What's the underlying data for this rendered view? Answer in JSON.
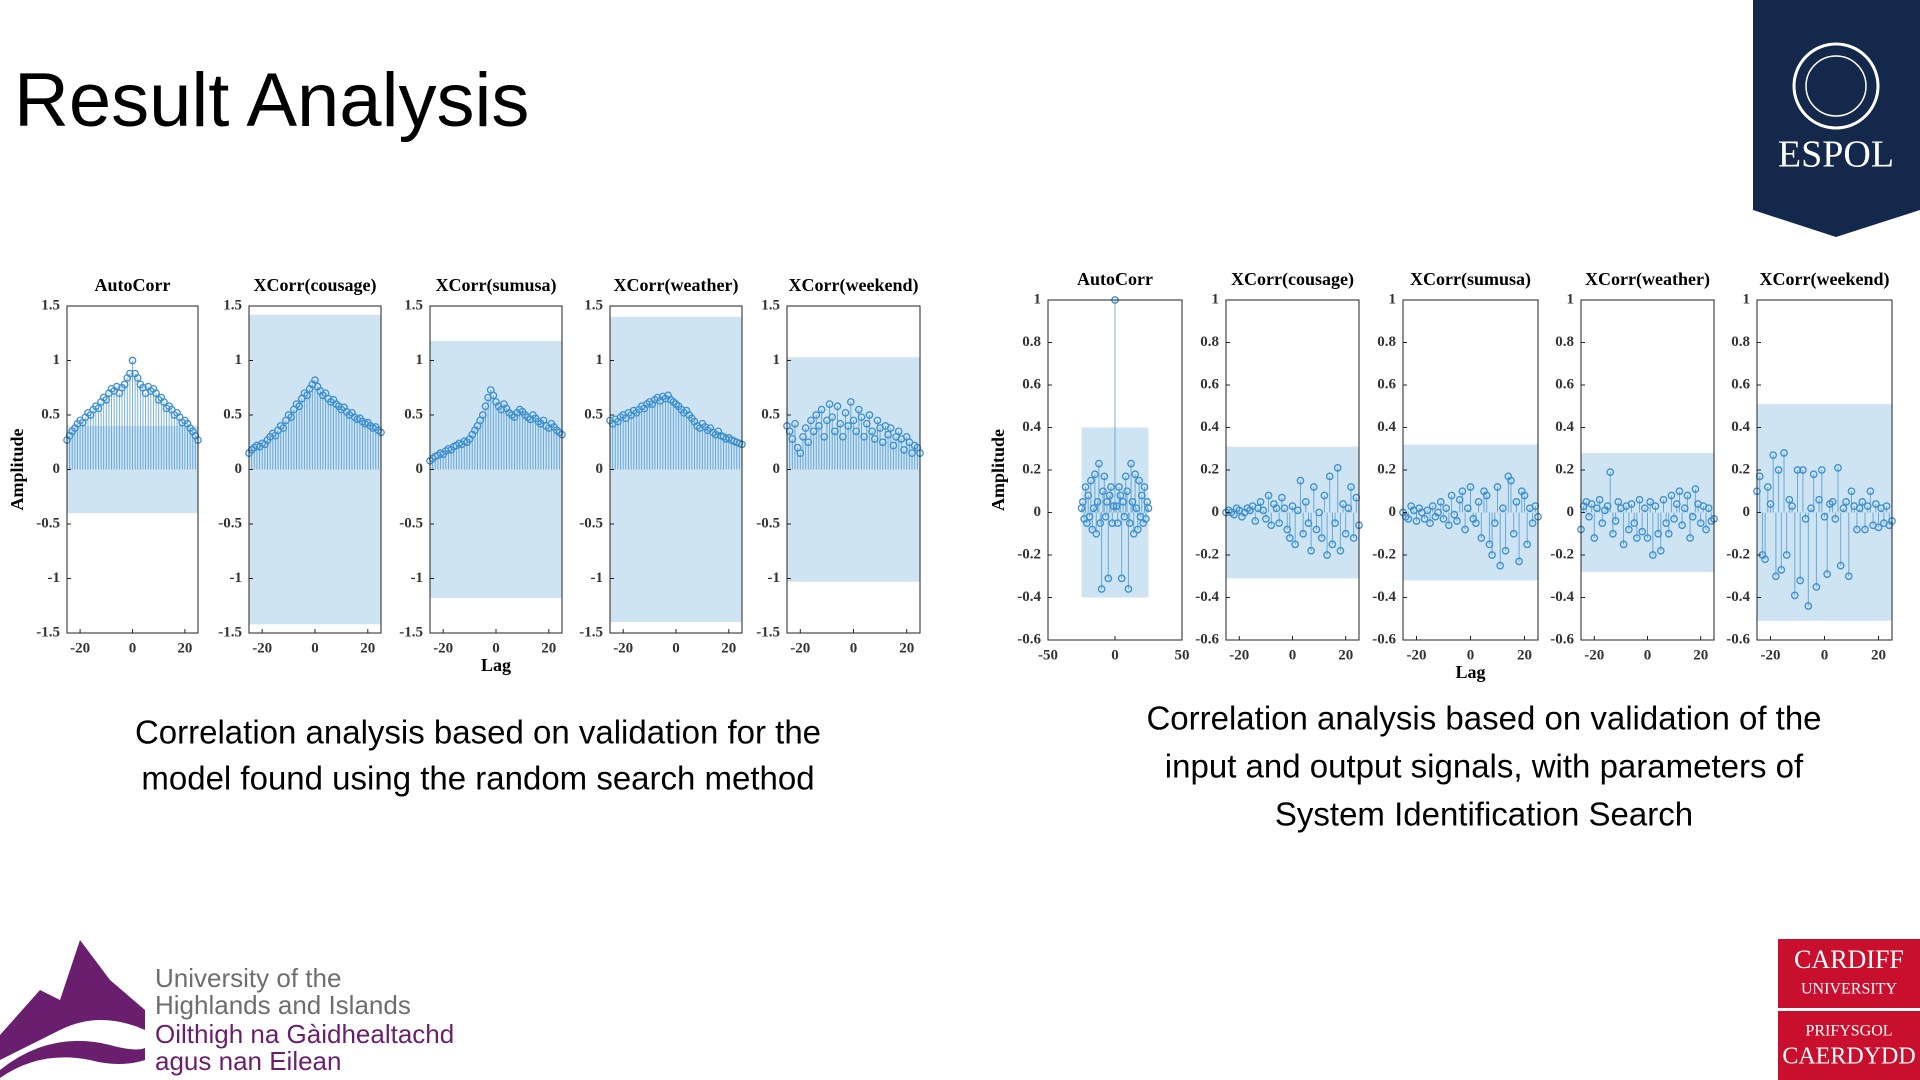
{
  "title": "Result Analysis",
  "captions": [
    [
      "Correlation analysis based on validation for the",
      "model found using the random search method"
    ],
    [
      "Correlation analysis based on validation of the",
      "input and output signals, with parameters of",
      "System Identification Search"
    ]
  ],
  "logos": {
    "espol": "ESPOL",
    "uhi": [
      "University of the",
      "Highlands and Islands",
      "Oilthigh na Gàidhealtachd",
      "agus nan Eilean"
    ],
    "cardiff": [
      "CARDIFF",
      "UNIVERSITY",
      "PRIFYSGOL",
      "CAERDYDD"
    ]
  },
  "chart_data": [
    {
      "type": "stem",
      "title": "AutoCorr",
      "ylabel": "Amplitude",
      "color": "#3d8fd1",
      "band_color": "#c5dff0",
      "xlim": [
        -25,
        25
      ],
      "xticks": [
        -20,
        0,
        20
      ],
      "ylim": [
        -1.5,
        1.5
      ],
      "yticks": [
        -1.5,
        -1,
        -0.5,
        0,
        0.5,
        1,
        1.5
      ],
      "confidence_band": [
        -0.4,
        0.4
      ],
      "x": [
        -25,
        -24,
        -23,
        -22,
        -21,
        -20,
        -19,
        -18,
        -17,
        -16,
        -15,
        -14,
        -13,
        -12,
        -11,
        -10,
        -9,
        -8,
        -7,
        -6,
        -5,
        -4,
        -3,
        -2,
        -1,
        0,
        1,
        2,
        3,
        4,
        5,
        6,
        7,
        8,
        9,
        10,
        11,
        12,
        13,
        14,
        15,
        16,
        17,
        18,
        19,
        20,
        21,
        22,
        23,
        24,
        25
      ],
      "values": [
        0.27,
        0.31,
        0.35,
        0.38,
        0.42,
        0.45,
        0.43,
        0.48,
        0.52,
        0.5,
        0.55,
        0.58,
        0.56,
        0.62,
        0.66,
        0.64,
        0.7,
        0.74,
        0.72,
        0.76,
        0.7,
        0.75,
        0.78,
        0.84,
        0.88,
        1.0,
        0.88,
        0.84,
        0.78,
        0.75,
        0.7,
        0.76,
        0.72,
        0.74,
        0.7,
        0.64,
        0.66,
        0.62,
        0.56,
        0.58,
        0.55,
        0.5,
        0.52,
        0.48,
        0.43,
        0.45,
        0.42,
        0.38,
        0.35,
        0.31,
        0.27
      ]
    },
    {
      "type": "stem",
      "title": "XCorr(cousage)",
      "color": "#3d8fd1",
      "band_color": "#c5dff0",
      "xlim": [
        -25,
        25
      ],
      "xticks": [
        -20,
        0,
        20
      ],
      "ylim": [
        -1.5,
        1.5
      ],
      "yticks": [
        -1.5,
        -1,
        -0.5,
        0,
        0.5,
        1,
        1.5
      ],
      "confidence_band": [
        -1.42,
        1.42
      ],
      "x": [
        -25,
        -24,
        -23,
        -22,
        -21,
        -20,
        -19,
        -18,
        -17,
        -16,
        -15,
        -14,
        -13,
        -12,
        -11,
        -10,
        -9,
        -8,
        -7,
        -6,
        -5,
        -4,
        -3,
        -2,
        -1,
        0,
        1,
        2,
        3,
        4,
        5,
        6,
        7,
        8,
        9,
        10,
        11,
        12,
        13,
        14,
        15,
        16,
        17,
        18,
        19,
        20,
        21,
        22,
        23,
        24,
        25
      ],
      "values": [
        0.15,
        0.18,
        0.2,
        0.22,
        0.21,
        0.24,
        0.23,
        0.27,
        0.3,
        0.33,
        0.31,
        0.36,
        0.4,
        0.38,
        0.45,
        0.5,
        0.48,
        0.55,
        0.6,
        0.58,
        0.65,
        0.7,
        0.68,
        0.74,
        0.78,
        0.82,
        0.76,
        0.72,
        0.68,
        0.7,
        0.65,
        0.62,
        0.64,
        0.6,
        0.58,
        0.55,
        0.57,
        0.53,
        0.5,
        0.52,
        0.48,
        0.46,
        0.47,
        0.44,
        0.42,
        0.43,
        0.4,
        0.38,
        0.39,
        0.36,
        0.34
      ]
    },
    {
      "type": "stem",
      "title": "XCorr(sumusa)",
      "xlabel": "Lag",
      "color": "#3d8fd1",
      "band_color": "#c5dff0",
      "xlim": [
        -25,
        25
      ],
      "xticks": [
        -20,
        0,
        20
      ],
      "ylim": [
        -1.5,
        1.5
      ],
      "yticks": [
        -1.5,
        -1,
        -0.5,
        0,
        0.5,
        1,
        1.5
      ],
      "confidence_band": [
        -1.18,
        1.18
      ],
      "x": [
        -25,
        -24,
        -23,
        -22,
        -21,
        -20,
        -19,
        -18,
        -17,
        -16,
        -15,
        -14,
        -13,
        -12,
        -11,
        -10,
        -9,
        -8,
        -7,
        -6,
        -5,
        -4,
        -3,
        -2,
        -1,
        0,
        1,
        2,
        3,
        4,
        5,
        6,
        7,
        8,
        9,
        10,
        11,
        12,
        13,
        14,
        15,
        16,
        17,
        18,
        19,
        20,
        21,
        22,
        23,
        24,
        25
      ],
      "values": [
        0.08,
        0.1,
        0.12,
        0.13,
        0.15,
        0.14,
        0.17,
        0.19,
        0.18,
        0.21,
        0.22,
        0.24,
        0.23,
        0.26,
        0.25,
        0.28,
        0.32,
        0.36,
        0.4,
        0.45,
        0.5,
        0.58,
        0.66,
        0.73,
        0.68,
        0.62,
        0.58,
        0.55,
        0.6,
        0.56,
        0.52,
        0.5,
        0.48,
        0.52,
        0.55,
        0.53,
        0.5,
        0.48,
        0.46,
        0.5,
        0.47,
        0.44,
        0.42,
        0.45,
        0.4,
        0.38,
        0.42,
        0.39,
        0.36,
        0.34,
        0.32
      ]
    },
    {
      "type": "stem",
      "title": "XCorr(weather)",
      "color": "#3d8fd1",
      "band_color": "#c5dff0",
      "xlim": [
        -25,
        25
      ],
      "xticks": [
        -20,
        0,
        20
      ],
      "ylim": [
        -1.5,
        1.5
      ],
      "yticks": [
        -1.5,
        -1,
        -0.5,
        0,
        0.5,
        1,
        1.5
      ],
      "confidence_band": [
        -1.4,
        1.4
      ],
      "x": [
        -25,
        -24,
        -23,
        -22,
        -21,
        -20,
        -19,
        -18,
        -17,
        -16,
        -15,
        -14,
        -13,
        -12,
        -11,
        -10,
        -9,
        -8,
        -7,
        -6,
        -5,
        -4,
        -3,
        -2,
        -1,
        0,
        1,
        2,
        3,
        4,
        5,
        6,
        7,
        8,
        9,
        10,
        11,
        12,
        13,
        14,
        15,
        16,
        17,
        18,
        19,
        20,
        21,
        22,
        23,
        24,
        25
      ],
      "values": [
        0.45,
        0.42,
        0.46,
        0.44,
        0.48,
        0.5,
        0.47,
        0.52,
        0.5,
        0.54,
        0.52,
        0.55,
        0.58,
        0.56,
        0.6,
        0.62,
        0.6,
        0.64,
        0.66,
        0.63,
        0.67,
        0.65,
        0.68,
        0.64,
        0.62,
        0.6,
        0.58,
        0.55,
        0.52,
        0.54,
        0.5,
        0.47,
        0.44,
        0.4,
        0.38,
        0.42,
        0.39,
        0.36,
        0.38,
        0.34,
        0.32,
        0.35,
        0.31,
        0.3,
        0.28,
        0.29,
        0.27,
        0.26,
        0.25,
        0.24,
        0.23
      ]
    },
    {
      "type": "stem",
      "title": "XCorr(weekend)",
      "color": "#3d8fd1",
      "band_color": "#c5dff0",
      "xlim": [
        -25,
        25
      ],
      "xticks": [
        -20,
        0,
        20
      ],
      "ylim": [
        -1.5,
        1.5
      ],
      "yticks": [
        -1.5,
        -1,
        -0.5,
        0,
        0.5,
        1,
        1.5
      ],
      "confidence_band": [
        -1.03,
        1.03
      ],
      "x": [
        -25,
        -24,
        -23,
        -22,
        -21,
        -20,
        -19,
        -18,
        -17,
        -16,
        -15,
        -14,
        -13,
        -12,
        -11,
        -10,
        -9,
        -8,
        -7,
        -6,
        -5,
        -4,
        -3,
        -2,
        -1,
        0,
        1,
        2,
        3,
        4,
        5,
        6,
        7,
        8,
        9,
        10,
        11,
        12,
        13,
        14,
        15,
        16,
        17,
        18,
        19,
        20,
        21,
        22,
        23,
        24,
        25
      ],
      "values": [
        0.4,
        0.35,
        0.28,
        0.42,
        0.2,
        0.15,
        0.3,
        0.38,
        0.25,
        0.45,
        0.35,
        0.5,
        0.4,
        0.55,
        0.3,
        0.45,
        0.6,
        0.48,
        0.35,
        0.58,
        0.42,
        0.3,
        0.52,
        0.4,
        0.62,
        0.45,
        0.35,
        0.55,
        0.48,
        0.3,
        0.42,
        0.5,
        0.35,
        0.28,
        0.45,
        0.38,
        0.25,
        0.4,
        0.32,
        0.38,
        0.22,
        0.3,
        0.35,
        0.28,
        0.18,
        0.3,
        0.25,
        0.15,
        0.22,
        0.2,
        0.15
      ]
    },
    {
      "type": "stem",
      "title": "AutoCorr",
      "ylabel": "Amplitude",
      "color": "#3d8fd1",
      "band_color": "#c5dff0",
      "xlim": [
        -50,
        50
      ],
      "xticks": [
        -50,
        0,
        50
      ],
      "ylim": [
        -0.6,
        1
      ],
      "yticks": [
        -0.6,
        -0.4,
        -0.2,
        0,
        0.2,
        0.4,
        0.6,
        0.8,
        1
      ],
      "confidence_band": [
        -0.4,
        0.4
      ],
      "x": [
        -25,
        -24,
        -23,
        -22,
        -21,
        -20,
        -19,
        -18,
        -17,
        -16,
        -15,
        -14,
        -13,
        -12,
        -11,
        -10,
        -9,
        -8,
        -7,
        -6,
        -5,
        -4,
        -3,
        -2,
        -1,
        0,
        1,
        2,
        3,
        4,
        5,
        6,
        7,
        8,
        9,
        10,
        11,
        12,
        13,
        14,
        15,
        16,
        17,
        18,
        19,
        20,
        21,
        22,
        23,
        24,
        25
      ],
      "values": [
        0.02,
        0.05,
        -0.03,
        0.12,
        -0.05,
        0.08,
        -0.02,
        0.15,
        -0.08,
        0.02,
        0.18,
        -0.1,
        0.05,
        0.23,
        -0.05,
        -0.36,
        0.1,
        0.17,
        -0.02,
        0.05,
        -0.31,
        0.08,
        0.12,
        -0.05,
        0.03,
        1.0,
        0.03,
        -0.05,
        0.12,
        0.08,
        -0.31,
        0.05,
        -0.02,
        0.17,
        0.1,
        -0.36,
        -0.05,
        0.23,
        0.05,
        -0.1,
        0.18,
        0.02,
        -0.08,
        0.15,
        -0.02,
        0.08,
        -0.05,
        0.12,
        -0.03,
        0.05,
        0.02
      ]
    },
    {
      "type": "stem",
      "title": "XCorr(cousage)",
      "color": "#3d8fd1",
      "band_color": "#c5dff0",
      "xlim": [
        -25,
        25
      ],
      "xticks": [
        -20,
        0,
        20
      ],
      "ylim": [
        -0.6,
        1
      ],
      "yticks": [
        -0.6,
        -0.4,
        -0.2,
        0,
        0.2,
        0.4,
        0.6,
        0.8,
        1
      ],
      "confidence_band": [
        -0.31,
        0.31
      ],
      "x": [
        -25,
        -24,
        -23,
        -22,
        -21,
        -20,
        -19,
        -18,
        -17,
        -16,
        -15,
        -14,
        -13,
        -12,
        -11,
        -10,
        -9,
        -8,
        -7,
        -6,
        -5,
        -4,
        -3,
        -2,
        -1,
        0,
        1,
        2,
        3,
        4,
        5,
        6,
        7,
        8,
        9,
        10,
        11,
        12,
        13,
        14,
        15,
        16,
        17,
        18,
        19,
        20,
        21,
        22,
        23,
        24,
        25
      ],
      "values": [
        0.0,
        0.01,
        0.0,
        -0.01,
        0.02,
        0.01,
        -0.02,
        0.0,
        0.02,
        0.01,
        0.03,
        -0.04,
        0.02,
        0.05,
        0.01,
        -0.03,
        0.08,
        -0.06,
        0.04,
        0.02,
        -0.05,
        0.07,
        0.02,
        -0.08,
        -0.12,
        0.03,
        -0.15,
        0.01,
        0.15,
        -0.1,
        0.05,
        -0.05,
        -0.18,
        0.12,
        -0.08,
        0.0,
        -0.12,
        0.08,
        -0.2,
        0.17,
        -0.15,
        -0.05,
        0.21,
        -0.18,
        0.04,
        -0.1,
        0.02,
        0.12,
        -0.12,
        0.07,
        -0.06
      ]
    },
    {
      "type": "stem",
      "title": "XCorr(sumusa)",
      "xlabel": "Lag",
      "color": "#3d8fd1",
      "band_color": "#c5dff0",
      "xlim": [
        -25,
        25
      ],
      "xticks": [
        -20,
        0,
        20
      ],
      "ylim": [
        -0.6,
        1
      ],
      "yticks": [
        -0.6,
        -0.4,
        -0.2,
        0,
        0.2,
        0.4,
        0.6,
        0.8,
        1
      ],
      "confidence_band": [
        -0.32,
        0.32
      ],
      "x": [
        -25,
        -24,
        -23,
        -22,
        -21,
        -20,
        -19,
        -18,
        -17,
        -16,
        -15,
        -14,
        -13,
        -12,
        -11,
        -10,
        -9,
        -8,
        -7,
        -6,
        -5,
        -4,
        -3,
        -2,
        -1,
        0,
        1,
        2,
        3,
        4,
        5,
        6,
        7,
        8,
        9,
        10,
        11,
        12,
        13,
        14,
        15,
        16,
        17,
        18,
        19,
        20,
        21,
        22,
        23,
        24,
        25
      ],
      "values": [
        0.0,
        -0.02,
        -0.03,
        0.03,
        0.01,
        -0.04,
        0.02,
        0.0,
        -0.03,
        0.01,
        -0.05,
        0.03,
        -0.02,
        0.0,
        0.05,
        -0.03,
        0.02,
        -0.06,
        0.08,
        -0.01,
        -0.04,
        0.06,
        0.1,
        -0.08,
        0.02,
        0.12,
        -0.03,
        -0.05,
        0.05,
        -0.12,
        0.1,
        0.08,
        -0.15,
        -0.2,
        -0.05,
        0.12,
        -0.25,
        0.02,
        -0.18,
        0.17,
        0.15,
        -0.1,
        0.05,
        -0.23,
        0.1,
        0.08,
        -0.15,
        0.02,
        -0.05,
        0.03,
        -0.02
      ]
    },
    {
      "type": "stem",
      "title": "XCorr(weather)",
      "color": "#3d8fd1",
      "band_color": "#c5dff0",
      "xlim": [
        -25,
        25
      ],
      "xticks": [
        -20,
        0,
        20
      ],
      "ylim": [
        -0.6,
        1
      ],
      "yticks": [
        -0.6,
        -0.4,
        -0.2,
        0,
        0.2,
        0.4,
        0.6,
        0.8,
        1
      ],
      "confidence_band": [
        -0.28,
        0.28
      ],
      "x": [
        -25,
        -24,
        -23,
        -22,
        -21,
        -20,
        -19,
        -18,
        -17,
        -16,
        -15,
        -14,
        -13,
        -12,
        -11,
        -10,
        -9,
        -8,
        -7,
        -6,
        -5,
        -4,
        -3,
        -2,
        -1,
        0,
        1,
        2,
        3,
        4,
        5,
        6,
        7,
        8,
        9,
        10,
        11,
        12,
        13,
        14,
        15,
        16,
        17,
        18,
        19,
        20,
        21,
        22,
        23,
        24,
        25
      ],
      "values": [
        -0.08,
        0.03,
        0.05,
        -0.02,
        0.04,
        -0.12,
        0.02,
        0.06,
        -0.05,
        0.01,
        0.03,
        0.19,
        -0.1,
        -0.04,
        0.05,
        0.02,
        -0.15,
        0.03,
        -0.08,
        0.04,
        -0.05,
        -0.12,
        0.06,
        -0.09,
        0.02,
        -0.12,
        0.05,
        -0.2,
        0.03,
        -0.1,
        -0.18,
        0.06,
        -0.05,
        -0.1,
        0.08,
        -0.03,
        0.04,
        0.1,
        -0.06,
        0.02,
        0.08,
        -0.12,
        -0.02,
        0.11,
        0.04,
        -0.05,
        0.03,
        -0.08,
        0.02,
        -0.04,
        -0.03
      ]
    },
    {
      "type": "stem",
      "title": "XCorr(weekend)",
      "color": "#3d8fd1",
      "band_color": "#c5dff0",
      "xlim": [
        -25,
        25
      ],
      "xticks": [
        -20,
        0,
        20
      ],
      "ylim": [
        -0.6,
        1
      ],
      "yticks": [
        -0.6,
        -0.4,
        -0.2,
        0,
        0.2,
        0.4,
        0.6,
        0.8,
        1
      ],
      "confidence_band": [
        -0.51,
        0.51
      ],
      "x": [
        -25,
        -24,
        -23,
        -22,
        -21,
        -20,
        -19,
        -18,
        -17,
        -16,
        -15,
        -14,
        -13,
        -12,
        -11,
        -10,
        -9,
        -8,
        -7,
        -6,
        -5,
        -4,
        -3,
        -2,
        -1,
        0,
        1,
        2,
        3,
        4,
        5,
        6,
        7,
        8,
        9,
        10,
        11,
        12,
        13,
        14,
        15,
        16,
        17,
        18,
        19,
        20,
        21,
        22,
        23,
        24,
        25
      ],
      "values": [
        0.1,
        0.17,
        -0.2,
        -0.22,
        0.12,
        0.04,
        0.27,
        -0.3,
        0.2,
        -0.27,
        0.28,
        -0.2,
        0.06,
        0.03,
        -0.39,
        0.2,
        -0.32,
        0.2,
        -0.03,
        -0.44,
        0.02,
        0.18,
        -0.35,
        0.06,
        0.2,
        -0.02,
        -0.29,
        0.04,
        0.05,
        -0.03,
        0.21,
        -0.25,
        0.02,
        0.05,
        -0.3,
        0.1,
        0.03,
        -0.08,
        0.02,
        0.05,
        -0.08,
        0.03,
        0.1,
        -0.06,
        0.04,
        -0.07,
        0.02,
        -0.05,
        0.03,
        -0.06,
        -0.04
      ]
    }
  ]
}
